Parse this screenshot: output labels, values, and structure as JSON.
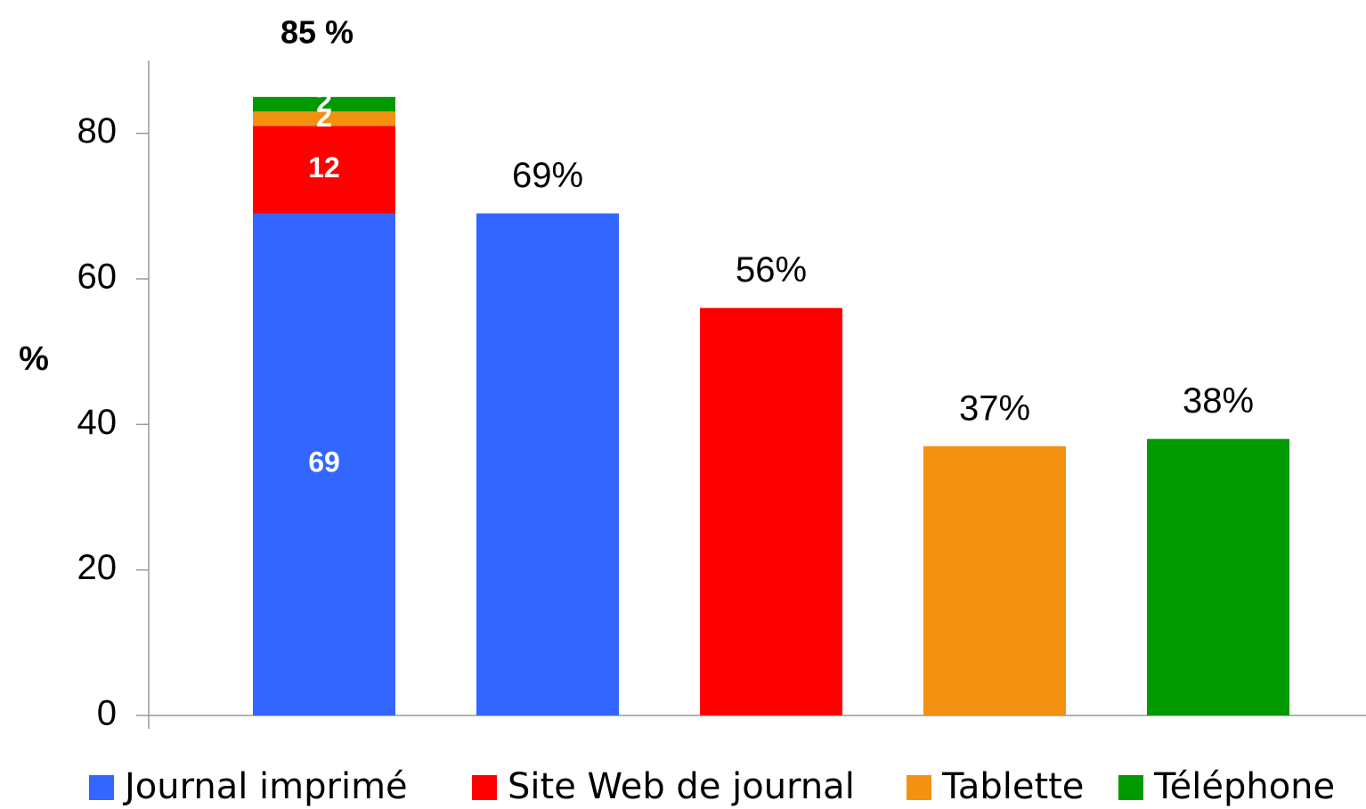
{
  "chart_data": {
    "type": "stacked_bar",
    "y_label": "%",
    "categories": [
      null,
      null,
      null,
      null,
      null
    ],
    "series": [
      {
        "name": "Journal imprimé",
        "color": "#3366ff",
        "values": [
          69,
          69,
          null,
          null,
          null
        ],
        "value_labels": [
          "69",
          "69%",
          null,
          null,
          null
        ]
      },
      {
        "name": "Site Web de journal",
        "color": "#ff0000",
        "values": [
          12,
          null,
          56,
          null,
          null
        ],
        "value_labels": [
          "12",
          null,
          "56%",
          null,
          null
        ]
      },
      {
        "name": "Tablette",
        "color": "#f39110",
        "values": [
          2,
          null,
          null,
          37,
          null
        ],
        "value_labels": [
          "2",
          null,
          null,
          "37%",
          null
        ]
      },
      {
        "name": "Téléphone",
        "color": "#009900",
        "values": [
          2,
          null,
          null,
          null,
          38
        ],
        "value_labels": [
          "2",
          null,
          null,
          null,
          "38%"
        ]
      }
    ],
    "annotations": [
      {
        "text": "85 %"
      }
    ],
    "ylim": [
      0,
      90
    ],
    "yticks": [
      0,
      20,
      40,
      60,
      80
    ],
    "grid": false,
    "legend": "bottom"
  }
}
